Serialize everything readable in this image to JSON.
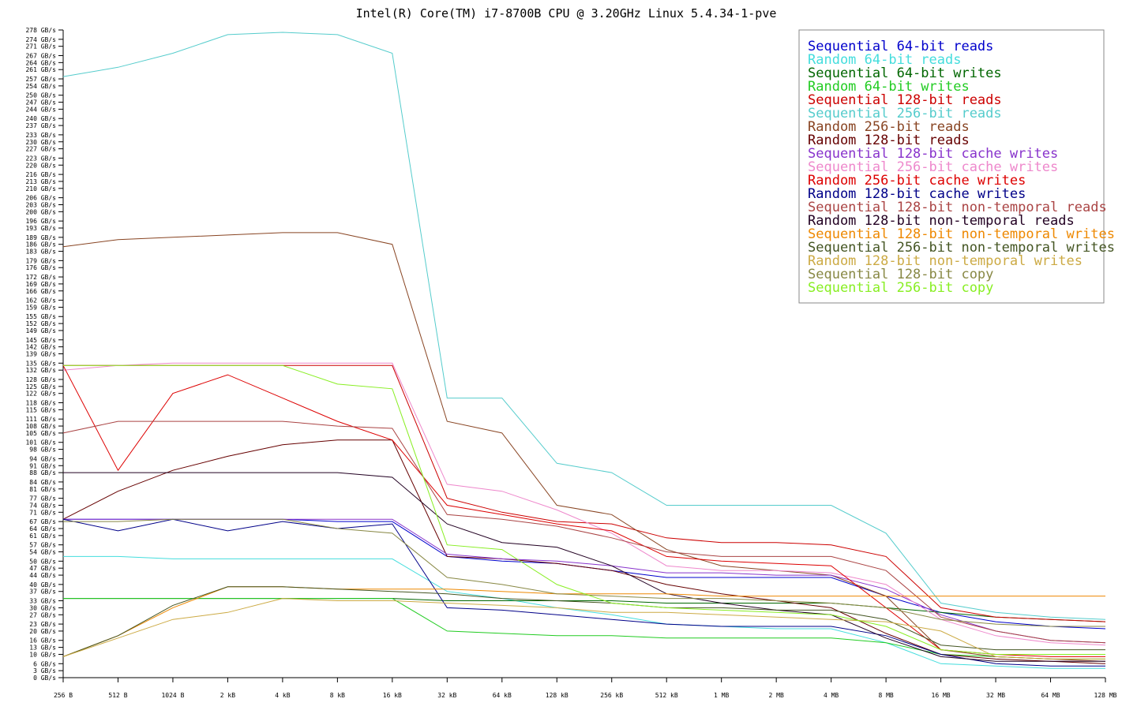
{
  "chart_data": {
    "type": "line",
    "title": "Intel(R) Core(TM) i7-8700B CPU @ 3.20GHz Linux 5.4.34-1-pve",
    "xlabel": "",
    "ylabel": "",
    "x_scale": "log2",
    "ylim": [
      0,
      278
    ],
    "grid": false,
    "legend_position": "top-right",
    "x": [
      "256 B",
      "512 B",
      "1024 B",
      "2 kB",
      "4 kB",
      "8 kB",
      "16 kB",
      "32 kB",
      "64 kB",
      "128 kB",
      "256 kB",
      "512 kB",
      "1 MB",
      "2 MB",
      "4 MB",
      "8 MB",
      "16 MB",
      "32 MB",
      "64 MB",
      "128 MB"
    ],
    "y_ticks": [
      "0 GB/s",
      "3 GB/s",
      "6 GB/s",
      "10 GB/s",
      "13 GB/s",
      "16 GB/s",
      "20 GB/s",
      "23 GB/s",
      "27 GB/s",
      "30 GB/s",
      "33 GB/s",
      "37 GB/s",
      "40 GB/s",
      "44 GB/s",
      "47 GB/s",
      "50 GB/s",
      "54 GB/s",
      "57 GB/s",
      "61 GB/s",
      "64 GB/s",
      "67 GB/s",
      "71 GB/s",
      "74 GB/s",
      "77 GB/s",
      "81 GB/s",
      "84 GB/s",
      "88 GB/s",
      "91 GB/s",
      "94 GB/s",
      "98 GB/s",
      "101 GB/s",
      "105 GB/s",
      "108 GB/s",
      "111 GB/s",
      "115 GB/s",
      "118 GB/s",
      "122 GB/s",
      "125 GB/s",
      "128 GB/s",
      "132 GB/s",
      "135 GB/s",
      "139 GB/s",
      "142 GB/s",
      "145 GB/s",
      "149 GB/s",
      "152 GB/s",
      "155 GB/s",
      "159 GB/s",
      "162 GB/s",
      "166 GB/s",
      "169 GB/s",
      "172 GB/s",
      "176 GB/s",
      "179 GB/s",
      "183 GB/s",
      "186 GB/s",
      "189 GB/s",
      "193 GB/s",
      "196 GB/s",
      "200 GB/s",
      "203 GB/s",
      "206 GB/s",
      "210 GB/s",
      "213 GB/s",
      "216 GB/s",
      "220 GB/s",
      "223 GB/s",
      "227 GB/s",
      "230 GB/s",
      "233 GB/s",
      "237 GB/s",
      "240 GB/s",
      "244 GB/s",
      "247 GB/s",
      "250 GB/s",
      "254 GB/s",
      "257 GB/s",
      "261 GB/s",
      "264 GB/s",
      "267 GB/s",
      "271 GB/s",
      "274 GB/s",
      "278 GB/s"
    ],
    "series": [
      {
        "name": "Sequential 64-bit reads",
        "color": "#0000cc",
        "values": [
          68,
          68,
          68,
          68,
          68,
          67,
          67,
          52,
          50,
          49,
          46,
          43,
          43,
          43,
          43,
          35,
          28,
          24,
          22,
          21
        ]
      },
      {
        "name": "Random 64-bit reads",
        "color": "#44dddd",
        "values": [
          52,
          52,
          51,
          51,
          51,
          51,
          51,
          37,
          34,
          30,
          27,
          23,
          22,
          21,
          21,
          15,
          6,
          5,
          4,
          4
        ]
      },
      {
        "name": "Sequential 64-bit writes",
        "color": "#006600",
        "values": [
          34,
          34,
          34,
          34,
          34,
          34,
          34,
          33,
          33,
          33,
          33,
          32,
          32,
          32,
          32,
          30,
          28,
          26,
          25,
          24
        ]
      },
      {
        "name": "Random 64-bit writes",
        "color": "#22cc22",
        "values": [
          34,
          34,
          34,
          34,
          34,
          34,
          34,
          20,
          19,
          18,
          18,
          17,
          17,
          17,
          17,
          15,
          10,
          9,
          8,
          8
        ]
      },
      {
        "name": "Sequential 128-bit reads",
        "color": "#cc0000",
        "values": [
          134,
          134,
          134,
          134,
          134,
          134,
          134,
          77,
          71,
          67,
          66,
          60,
          58,
          58,
          57,
          52,
          30,
          26,
          25,
          24
        ]
      },
      {
        "name": "Sequential 256-bit reads",
        "color": "#55cccc",
        "values": [
          258,
          262,
          268,
          276,
          277,
          276,
          268,
          120,
          120,
          92,
          88,
          74,
          74,
          74,
          74,
          62,
          32,
          28,
          26,
          25
        ]
      },
      {
        "name": "Random 256-bit reads",
        "color": "#884422",
        "values": [
          185,
          188,
          189,
          190,
          191,
          191,
          186,
          110,
          105,
          74,
          70,
          55,
          48,
          46,
          44,
          35,
          12,
          9,
          8,
          7
        ]
      },
      {
        "name": "Random 128-bit reads",
        "color": "#660000",
        "values": [
          68,
          80,
          89,
          95,
          100,
          102,
          102,
          52,
          51,
          49,
          46,
          40,
          36,
          33,
          30,
          19,
          10,
          8,
          7,
          6
        ]
      },
      {
        "name": "Sequential 128-bit cache writes",
        "color": "#8833cc",
        "values": [
          68,
          68,
          68,
          68,
          68,
          68,
          68,
          53,
          51,
          50,
          48,
          45,
          45,
          44,
          44,
          38,
          27,
          20,
          16,
          15
        ]
      },
      {
        "name": "Sequential 256-bit cache writes",
        "color": "#ee88cc",
        "values": [
          132,
          134,
          135,
          135,
          135,
          135,
          135,
          83,
          80,
          72,
          62,
          48,
          46,
          46,
          45,
          40,
          25,
          18,
          15,
          14
        ]
      },
      {
        "name": "Random 256-bit cache writes",
        "color": "#dd0000",
        "values": [
          134,
          89,
          122,
          130,
          120,
          110,
          102,
          74,
          70,
          66,
          63,
          52,
          50,
          49,
          48,
          30,
          12,
          10,
          9,
          9
        ]
      },
      {
        "name": "Random 128-bit cache writes",
        "color": "#000088",
        "values": [
          68,
          63,
          68,
          63,
          67,
          64,
          66,
          30,
          29,
          27,
          25,
          23,
          22,
          22,
          22,
          18,
          10,
          6,
          5,
          5
        ]
      },
      {
        "name": "Sequential 128-bit non-temporal reads",
        "color": "#aa4444",
        "values": [
          105,
          110,
          110,
          110,
          110,
          108,
          107,
          70,
          68,
          65,
          60,
          54,
          52,
          52,
          52,
          46,
          26,
          20,
          16,
          15
        ]
      },
      {
        "name": "Random 128-bit non-temporal reads",
        "color": "#220022",
        "values": [
          88,
          88,
          88,
          88,
          88,
          88,
          86,
          66,
          58,
          56,
          48,
          36,
          32,
          29,
          27,
          17,
          9,
          7,
          7,
          7
        ]
      },
      {
        "name": "Sequential 128-bit non-temporal writes",
        "color": "#ee8800",
        "values": [
          9,
          18,
          30,
          39,
          39,
          38,
          38,
          38,
          37,
          36,
          36,
          36,
          35,
          35,
          35,
          35,
          35,
          35,
          35,
          35
        ]
      },
      {
        "name": "Sequential 256-bit non-temporal writes",
        "color": "#445522",
        "values": [
          9,
          18,
          31,
          39,
          39,
          38,
          37,
          36,
          34,
          33,
          32,
          30,
          30,
          29,
          29,
          25,
          14,
          12,
          12,
          12
        ]
      },
      {
        "name": "Random 128-bit non-temporal writes",
        "color": "#ccaa44",
        "values": [
          9,
          17,
          25,
          28,
          34,
          33,
          33,
          32,
          31,
          30,
          28,
          28,
          27,
          26,
          25,
          24,
          20,
          9,
          8,
          8
        ]
      },
      {
        "name": "Sequential 128-bit copy",
        "color": "#888844",
        "values": [
          67,
          67,
          68,
          68,
          68,
          64,
          62,
          43,
          40,
          36,
          35,
          34,
          34,
          33,
          32,
          30,
          25,
          23,
          22,
          22
        ]
      },
      {
        "name": "Sequential 256-bit copy",
        "color": "#88ee22",
        "values": [
          134,
          134,
          134,
          134,
          134,
          126,
          124,
          57,
          55,
          40,
          32,
          30,
          29,
          28,
          27,
          22,
          12,
          10,
          10,
          10
        ]
      }
    ]
  }
}
